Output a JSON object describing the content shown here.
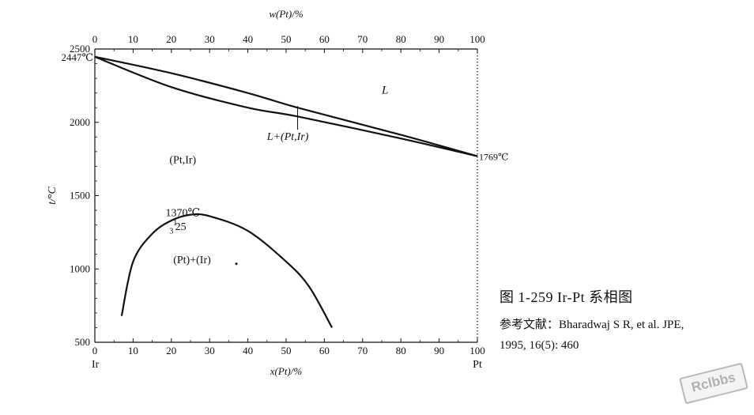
{
  "chart_data": {
    "type": "line",
    "top_axis": {
      "label": "w(Pt)/%",
      "ticks": [
        "0",
        "10",
        "20",
        "30",
        "40",
        "50",
        "60",
        "70",
        "80",
        "90",
        "100"
      ],
      "range": [
        0,
        100
      ]
    },
    "bottom_axis": {
      "label": "x(Pt)/%",
      "ticks": [
        "0",
        "10",
        "20",
        "30",
        "40",
        "50",
        "60",
        "70",
        "80",
        "90",
        "100"
      ],
      "range": [
        0,
        100
      ]
    },
    "y_axis": {
      "label": "t/°C",
      "ticks": [
        "500",
        "1000",
        "1500",
        "2000",
        "2500"
      ],
      "range": [
        500,
        2500
      ]
    },
    "end_labels": {
      "left": "Ir",
      "right": "Pt"
    },
    "series": [
      {
        "points": [
          [
            0,
            2447
          ],
          [
            20,
            2335
          ],
          [
            40,
            2200
          ],
          [
            53,
            2100
          ],
          [
            80,
            1915
          ],
          [
            100,
            1769
          ]
        ]
      },
      {
        "points": [
          [
            0,
            2447
          ],
          [
            20,
            2240
          ],
          [
            40,
            2100
          ],
          [
            53,
            2040
          ],
          [
            80,
            1890
          ],
          [
            100,
            1769
          ]
        ]
      },
      {
        "points": [
          [
            7,
            680
          ],
          [
            10,
            1050
          ],
          [
            15,
            1240
          ],
          [
            20,
            1330
          ],
          [
            25,
            1370
          ],
          [
            30,
            1360
          ],
          [
            40,
            1260
          ],
          [
            50,
            1050
          ],
          [
            56,
            880
          ],
          [
            62,
            600
          ]
        ]
      }
    ],
    "annotations": {
      "ir_mp": "2447℃",
      "pt_mp": "1769℃",
      "critical_temp": "1370℃",
      "critical_comp": "25",
      "critical_sub": "3",
      "critical_sub2": "1",
      "liquid": "L",
      "two_phase": "L+(Pt,Ir)",
      "solid_solution": "(Pt,Ir)",
      "miscibility_gap": "(Pt)+(Ir)"
    }
  },
  "caption": {
    "title": "图 1-259   Ir-Pt 系相图",
    "ref_line1": "参考文献：Bharadwaj S R, et al. JPE,",
    "ref_line2": "1995, 16(5): 460"
  },
  "watermark": "Rclbbs"
}
